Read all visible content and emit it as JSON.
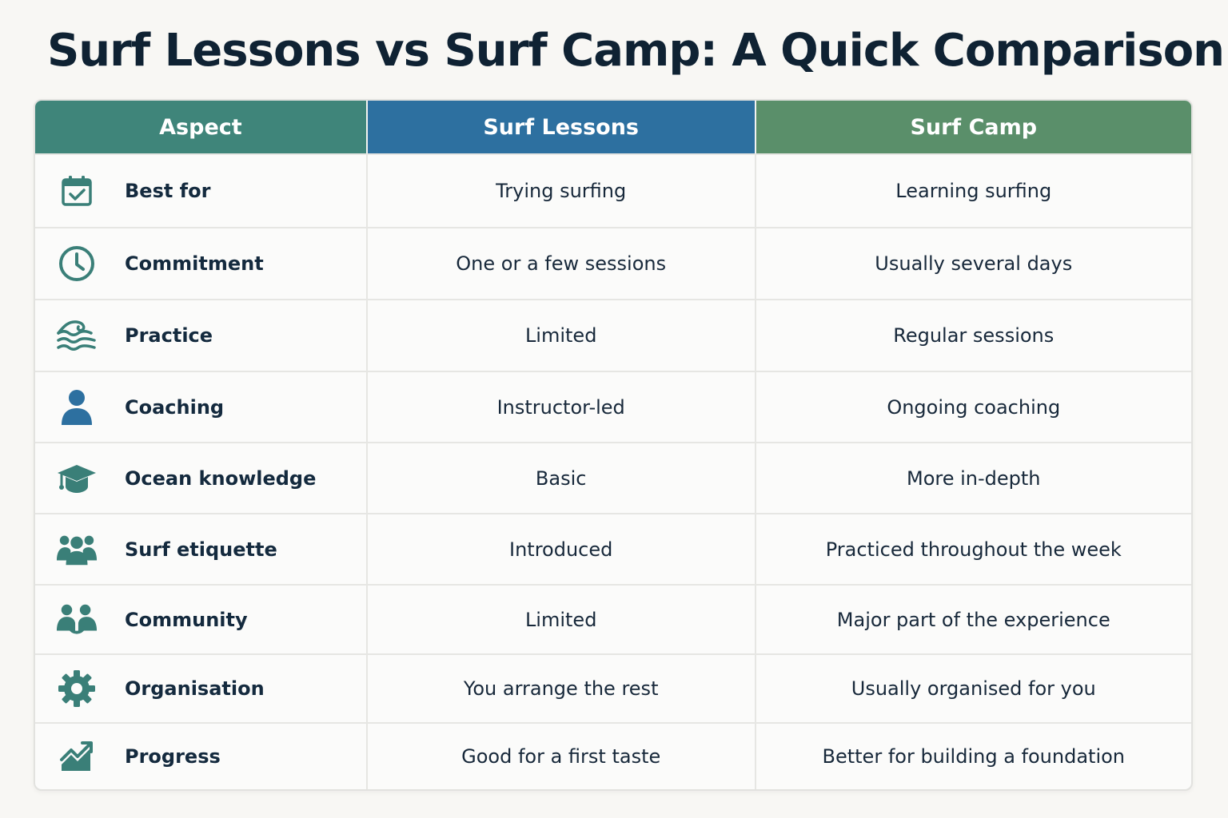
{
  "title": "Surf Lessons vs Surf Camp: A Quick Comparison",
  "headers": {
    "aspect": "Aspect",
    "lessons": "Surf Lessons",
    "camp": "Surf Camp"
  },
  "colors": {
    "aspect_header": "#3f857a",
    "lessons_header": "#2d70a0",
    "camp_header": "#5a8f6a",
    "icon_teal": "#3a7f78",
    "icon_blue": "#2d70a0"
  },
  "rows": [
    {
      "icon": "calendar-check-icon",
      "aspect": "Best for",
      "lessons": "Trying surfing",
      "camp": "Learning surfing"
    },
    {
      "icon": "clock-icon",
      "aspect": "Commitment",
      "lessons": "One or a few sessions",
      "camp": "Usually several days"
    },
    {
      "icon": "wave-icon",
      "aspect": "Practice",
      "lessons": "Limited",
      "camp": "Regular sessions"
    },
    {
      "icon": "person-icon",
      "aspect": "Coaching",
      "lessons": "Instructor-led",
      "camp": "Ongoing coaching"
    },
    {
      "icon": "graduation-cap-icon",
      "aspect": "Ocean knowledge",
      "lessons": "Basic",
      "camp": "More in-depth"
    },
    {
      "icon": "group-icon",
      "aspect": "Surf etiquette",
      "lessons": "Introduced",
      "camp": "Practiced throughout the week"
    },
    {
      "icon": "community-icon",
      "aspect": "Community",
      "lessons": "Limited",
      "camp": "Major part of the experience"
    },
    {
      "icon": "gear-icon",
      "aspect": "Organisation",
      "lessons": "You arrange the rest",
      "camp": "Usually organised for you"
    },
    {
      "icon": "trend-up-icon",
      "aspect": "Progress",
      "lessons": "Good for a first taste",
      "camp": "Better for building a foundation"
    }
  ]
}
